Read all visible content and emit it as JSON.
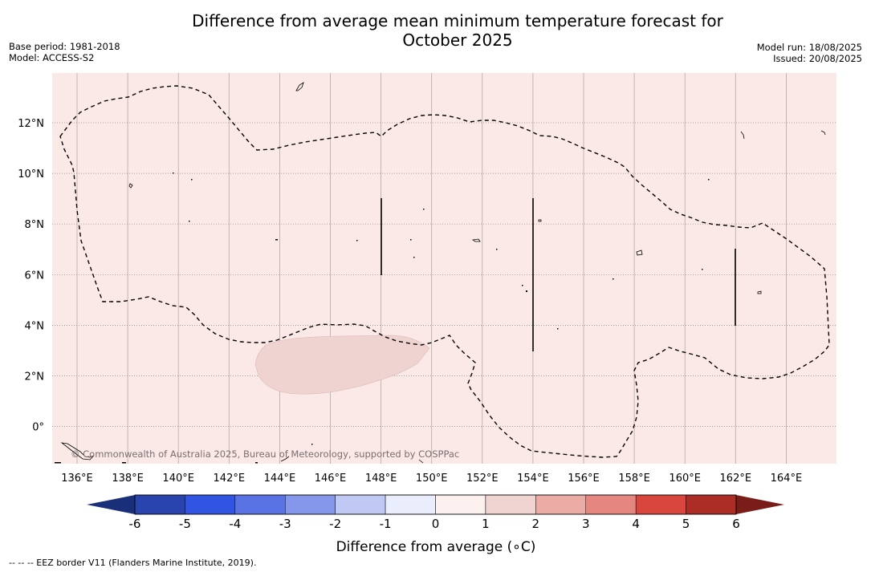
{
  "title": {
    "line1": "Difference from average mean minimum temperature forecast for",
    "line2": "October 2025"
  },
  "meta_left": {
    "base_period": "Base period: 1981-2018",
    "model": "Model: ACCESS-S2"
  },
  "meta_right": {
    "model_run": "Model run: 18/08/2025",
    "issued": "Issued: 20/08/2025"
  },
  "map": {
    "background_color": "#fbe9e8",
    "anomaly_patch_color": "#efd3d0",
    "lon_ticks": [
      "136°E",
      "138°E",
      "140°E",
      "142°E",
      "144°E",
      "146°E",
      "148°E",
      "150°E",
      "152°E",
      "154°E",
      "156°E",
      "158°E",
      "160°E",
      "162°E",
      "164°E"
    ],
    "lat_ticks": [
      "12°N",
      "10°N",
      "8°N",
      "6°N",
      "4°N",
      "2°N",
      "0°"
    ],
    "copyright": "© Commonwealth of Australia 2025, Bureau of Meteorology, supported by COSPPac"
  },
  "colorbar": {
    "label": "Difference from average (∘C)",
    "tick_labels": [
      "-6",
      "-5",
      "-4",
      "-3",
      "-2",
      "-1",
      "0",
      "1",
      "2",
      "3",
      "4",
      "5",
      "6"
    ],
    "extend_low_color": "#1a2f7a",
    "extend_high_color": "#7a1c18",
    "colors": [
      "#2a44ad",
      "#3254e2",
      "#5a73e4",
      "#8597ea",
      "#c0c8f4",
      "#eaedfb",
      "#fdf1f0",
      "#f0d4d1",
      "#ebaca6",
      "#e58680",
      "#d9463d",
      "#ac2c26"
    ]
  },
  "footnote": "--  --  -- EEZ border V11 (Flanders Marine Institute, 2019)."
}
